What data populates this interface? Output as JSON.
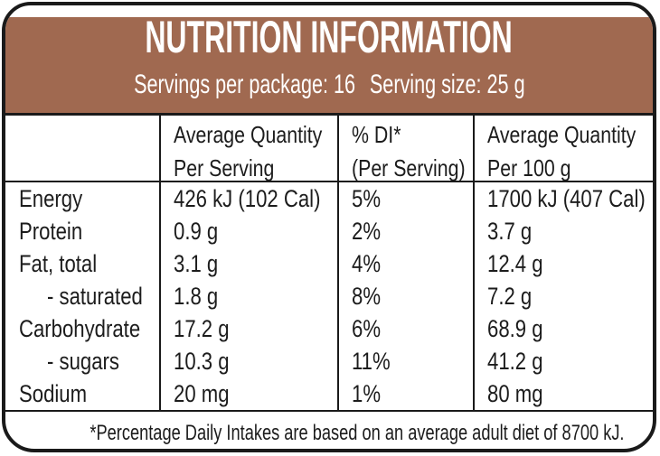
{
  "header": {
    "title": "NUTRITION INFORMATION",
    "servings_per_package": "Servings per package: 16",
    "serving_size": "Serving size: 25 g"
  },
  "columns": {
    "nutrient": "",
    "per_serving_line1": "Average Quantity",
    "per_serving_line2": "Per Serving",
    "di_line1": "% DI*",
    "di_line2": "(Per Serving)",
    "per_100g_line1": "Average Quantity",
    "per_100g_line2": "Per 100 g"
  },
  "rows": [
    {
      "nutrient": "Energy",
      "per_serving": "426 kJ (102 Cal)",
      "di": "5%",
      "per_100g": "1700 kJ (407 Cal)"
    },
    {
      "nutrient": "Protein",
      "per_serving": "0.9 g",
      "di": "2%",
      "per_100g": "3.7 g"
    },
    {
      "nutrient": "Fat, total",
      "per_serving": "3.1 g",
      "di": "4%",
      "per_100g": "12.4 g"
    },
    {
      "nutrient": "- saturated",
      "per_serving": "1.8 g",
      "di": "8%",
      "per_100g": "7.2 g"
    },
    {
      "nutrient": "Carbohydrate",
      "per_serving": "17.2 g",
      "di": "6%",
      "per_100g": "68.9 g"
    },
    {
      "nutrient": "- sugars",
      "per_serving": "10.3 g",
      "di": "11%",
      "per_100g": "41.2 g"
    },
    {
      "nutrient": "Sodium",
      "per_serving": "20 mg",
      "di": "1%",
      "per_100g": "80 mg"
    }
  ],
  "footnote": {
    "text": "*Percentage Daily Intakes are based on an average adult diet of 8700 kJ."
  },
  "colors": {
    "header_brown": "#A06950",
    "border_black": "#1A1A1A",
    "header_text": "#FFFFFF",
    "body_text": "#1C1C1C"
  }
}
